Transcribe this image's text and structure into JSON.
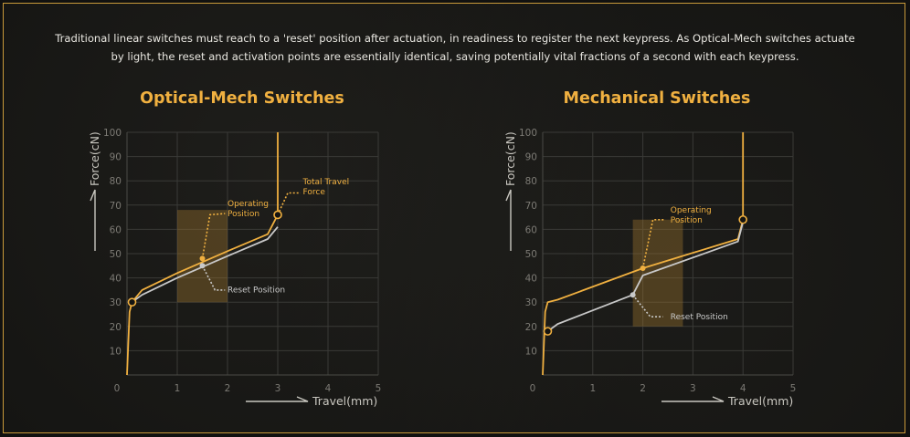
{
  "intro_text": "Traditional linear switches must reach to a 'reset' position after actuation, in readiness to register the next keypress. As Optical-Mech switches actuate by light, the reset and activation points are essentially identical, saving potentially vital fractions of a second with each keypress.",
  "colors": {
    "accent": "#f0b040",
    "secondary": "#c8c8c8",
    "grid": "#3a3a37",
    "background": "#141412",
    "border": "#c99a3a"
  },
  "chart_data": [
    {
      "type": "line",
      "title": "Optical-Mech Switches",
      "xlabel": "Travel(mm)",
      "ylabel": "Force(cN)",
      "xlim": [
        0,
        5
      ],
      "ylim": [
        0,
        100
      ],
      "xticks": [
        0,
        1,
        2,
        3,
        4,
        5
      ],
      "yticks": [
        10,
        20,
        30,
        40,
        50,
        60,
        70,
        80,
        90,
        100
      ],
      "grid": true,
      "shaded_region": {
        "x": [
          1.0,
          2.0
        ],
        "y": [
          30,
          68
        ]
      },
      "series": [
        {
          "color": "#f0b040",
          "points": [
            [
              0.0,
              0
            ],
            [
              0.05,
              26
            ],
            [
              0.1,
              30
            ],
            [
              0.3,
              35
            ],
            [
              1.0,
              42
            ],
            [
              2.0,
              51
            ],
            [
              2.8,
              58
            ],
            [
              3.0,
              66
            ],
            [
              3.0,
              100
            ]
          ]
        },
        {
          "color": "#c8c8c8",
          "points": [
            [
              0.1,
              30
            ],
            [
              0.3,
              33
            ],
            [
              1.0,
              40
            ],
            [
              2.0,
              49
            ],
            [
              2.8,
              56
            ],
            [
              3.0,
              61
            ]
          ]
        }
      ],
      "markers": [
        {
          "x": 0.1,
          "y": 30,
          "style": "hollow",
          "color": "#f0b040"
        },
        {
          "x": 1.5,
          "y": 48,
          "style": "solid",
          "color": "#f0b040"
        },
        {
          "x": 1.5,
          "y": 45,
          "style": "solid",
          "color": "#c8c8c8"
        },
        {
          "x": 3.0,
          "y": 66,
          "style": "hollow",
          "color": "#f0b040"
        }
      ],
      "annotations": [
        {
          "lines": [
            "Operating",
            "Position"
          ],
          "color": "#f0b040",
          "from": [
            1.5,
            48
          ],
          "elbow": [
            1.65,
            66
          ],
          "end": [
            1.95,
            66.5
          ],
          "text_at": [
            2.0,
            69.5
          ]
        },
        {
          "lines": [
            "Reset Position"
          ],
          "color": "#c8c8c8",
          "from": [
            1.5,
            45
          ],
          "elbow": [
            1.75,
            35
          ],
          "end": [
            1.95,
            35
          ],
          "text_at": [
            2.0,
            34
          ]
        },
        {
          "lines": [
            "Total Travel",
            "Force"
          ],
          "color": "#f0b040",
          "from": [
            3.0,
            66
          ],
          "elbow": [
            3.2,
            75
          ],
          "end": [
            3.45,
            75
          ],
          "text_at": [
            3.5,
            78.5
          ]
        }
      ]
    },
    {
      "type": "line",
      "title": "Mechanical Switches",
      "xlabel": "Travel(mm)",
      "ylabel": "Force(cN)",
      "xlim": [
        0,
        5
      ],
      "ylim": [
        0,
        100
      ],
      "xticks": [
        0,
        1,
        2,
        3,
        4,
        5
      ],
      "yticks": [
        10,
        20,
        30,
        40,
        50,
        60,
        70,
        80,
        90,
        100
      ],
      "grid": true,
      "shaded_region": {
        "x": [
          1.8,
          2.8
        ],
        "y": [
          20,
          64
        ]
      },
      "series": [
        {
          "color": "#f0b040",
          "points": [
            [
              0.0,
              0
            ],
            [
              0.05,
              26
            ],
            [
              0.1,
              30
            ],
            [
              0.3,
              31
            ],
            [
              2.0,
              44
            ],
            [
              3.9,
              56
            ],
            [
              4.0,
              64
            ],
            [
              4.0,
              100
            ]
          ]
        },
        {
          "color": "#c8c8c8",
          "points": [
            [
              0.1,
              18
            ],
            [
              0.3,
              21
            ],
            [
              1.8,
              33
            ],
            [
              2.0,
              41
            ],
            [
              3.9,
              55
            ],
            [
              4.0,
              63
            ]
          ]
        }
      ],
      "markers": [
        {
          "x": 0.1,
          "y": 18,
          "style": "hollow",
          "color": "#f0b040"
        },
        {
          "x": 1.8,
          "y": 33,
          "style": "solid",
          "color": "#c8c8c8"
        },
        {
          "x": 2.0,
          "y": 44,
          "style": "solid",
          "color": "#f0b040"
        },
        {
          "x": 4.0,
          "y": 64,
          "style": "hollow",
          "color": "#f0b040"
        }
      ],
      "annotations": [
        {
          "lines": [
            "Operating",
            "Position"
          ],
          "color": "#f0b040",
          "from": [
            2.0,
            44
          ],
          "elbow": [
            2.2,
            64
          ],
          "end": [
            2.45,
            64
          ],
          "text_at": [
            2.55,
            67
          ]
        },
        {
          "lines": [
            "Reset Position"
          ],
          "color": "#c8c8c8",
          "from": [
            1.8,
            33
          ],
          "elbow": [
            2.15,
            24
          ],
          "end": [
            2.4,
            24
          ],
          "text_at": [
            2.55,
            23
          ]
        }
      ]
    }
  ]
}
